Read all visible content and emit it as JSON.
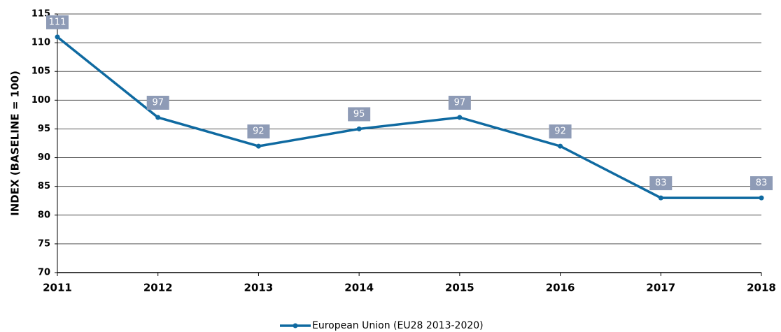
{
  "chart_data": {
    "type": "line",
    "y_label": "INDEX (BASELINE = 100)",
    "x": [
      2011,
      2012,
      2013,
      2014,
      2015,
      2016,
      2017,
      2018
    ],
    "xlim": [
      2011,
      2018
    ],
    "xticks": [
      2011,
      2012,
      2013,
      2014,
      2015,
      2016,
      2017,
      2018
    ],
    "ylim": [
      70,
      115
    ],
    "yticks": [
      70,
      75,
      80,
      85,
      90,
      95,
      100,
      105,
      110,
      115
    ],
    "grid": true,
    "legend": "bottom",
    "series": [
      {
        "name": "European Union (EU28 2013-2020)",
        "color": "#0f6aa1",
        "values": [
          111,
          97,
          92,
          95,
          97,
          92,
          83,
          83
        ]
      }
    ]
  }
}
